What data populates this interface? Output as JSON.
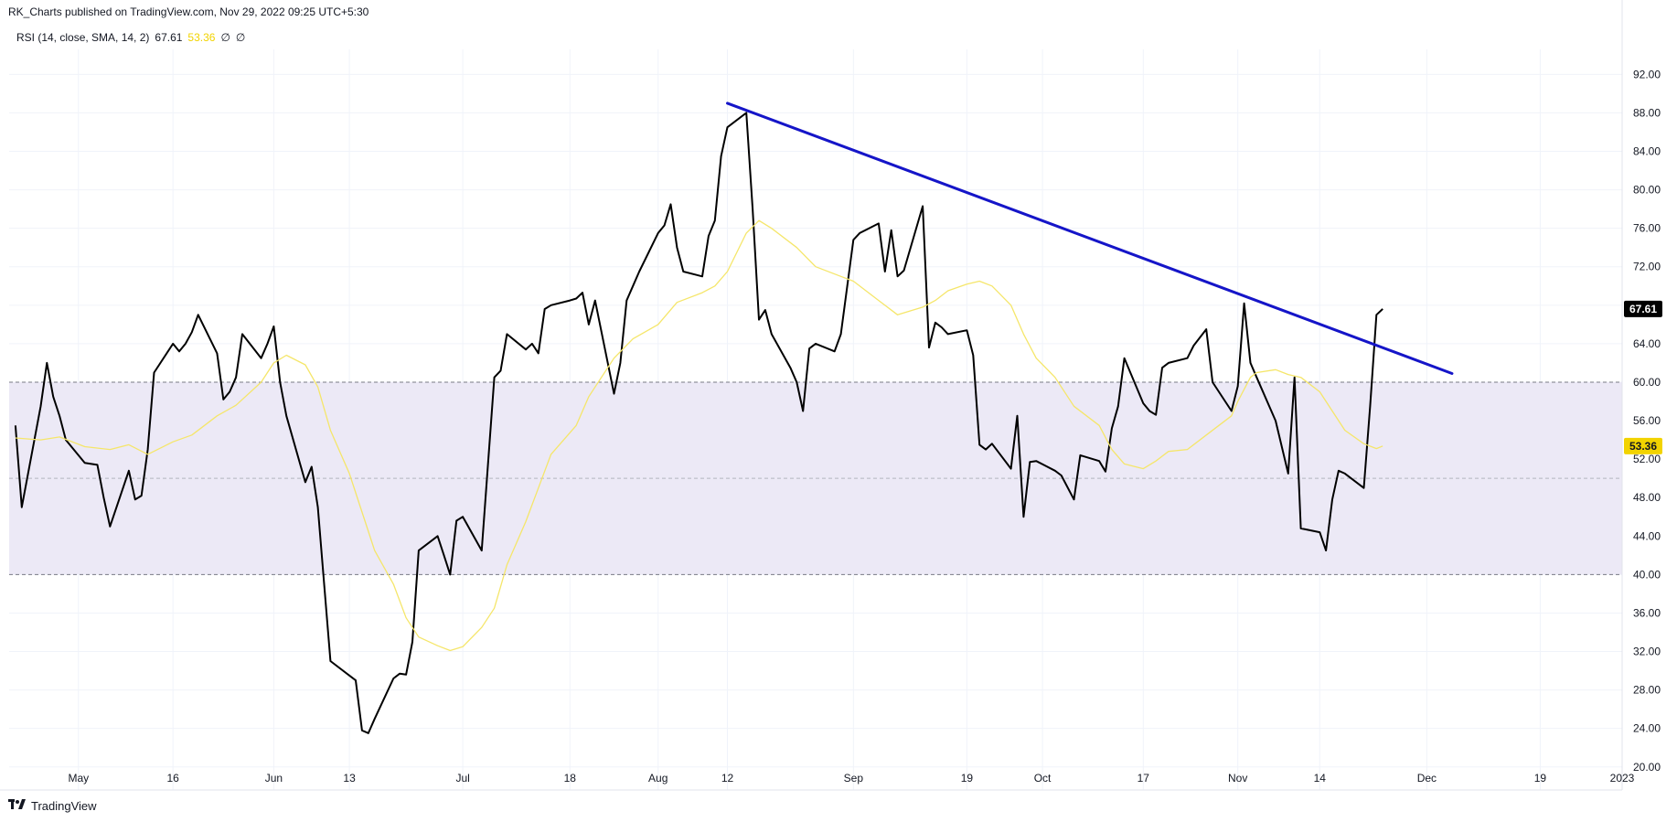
{
  "header": {
    "published": "RK_Charts published on TradingView.com, Nov 29, 2022 09:25 UTC+5:30"
  },
  "legend": {
    "indicator": "RSI (14, close, SMA, 14, 2)",
    "rsi_value": "67.61",
    "ma_value": "53.36",
    "extra1": "∅",
    "extra2": "∅"
  },
  "footer": {
    "brand": "TradingView"
  },
  "colors": {
    "rsi_line": "#000000",
    "ma_line": "#f5e66a",
    "trendline": "#1515c8",
    "band_fill": "#ece9f6",
    "grid": "#f0f3fa",
    "ma_badge": "#f2d300",
    "rsi_badge": "#000000"
  },
  "chart_data": {
    "type": "line",
    "ylim": [
      17.6,
      94.6
    ],
    "y_ticks": [
      "92.00",
      "88.00",
      "84.00",
      "80.00",
      "76.00",
      "72.00",
      "68.00",
      "64.00",
      "60.00",
      "56.00",
      "52.00",
      "48.00",
      "44.00",
      "40.00",
      "36.00",
      "32.00",
      "28.00",
      "24.00",
      "20.00"
    ],
    "y_tick_values": [
      92,
      88,
      84,
      80,
      76,
      72,
      68,
      64,
      60,
      56,
      52,
      48,
      44,
      40,
      36,
      32,
      28,
      24,
      20
    ],
    "x_labels": [
      "May",
      "16",
      "Jun",
      "13",
      "Jul",
      "18",
      "Aug",
      "12",
      "Sep",
      "19",
      "Oct",
      "17",
      "Nov",
      "14",
      "Dec",
      "19",
      "2023"
    ],
    "x_label_dates": [
      "2022-05-01",
      "2022-05-16",
      "2022-06-01",
      "2022-06-13",
      "2022-07-01",
      "2022-07-18",
      "2022-08-01",
      "2022-08-12",
      "2022-09-01",
      "2022-09-19",
      "2022-10-01",
      "2022-10-17",
      "2022-11-01",
      "2022-11-14",
      "2022-12-01",
      "2022-12-19",
      "2023-01-01"
    ],
    "bands": [
      {
        "from": 40,
        "to": 60,
        "upper_line": 60,
        "middle_line": 50,
        "lower_line": 40
      }
    ],
    "series": [
      {
        "type": "rsi",
        "points": [
          [
            "2022-04-21",
            55.5
          ],
          [
            "2022-04-22",
            47.0
          ],
          [
            "2022-04-25",
            57.5
          ],
          [
            "2022-04-26",
            62.0
          ],
          [
            "2022-04-27",
            58.5
          ],
          [
            "2022-04-28",
            56.5
          ],
          [
            "2022-04-29",
            54.0
          ],
          [
            "2022-05-02",
            51.6
          ],
          [
            "2022-05-04",
            51.4
          ],
          [
            "2022-05-05",
            48.0
          ],
          [
            "2022-05-06",
            45.0
          ],
          [
            "2022-05-09",
            50.8
          ],
          [
            "2022-05-10",
            47.8
          ],
          [
            "2022-05-11",
            48.2
          ],
          [
            "2022-05-12",
            53.0
          ],
          [
            "2022-05-13",
            61.0
          ],
          [
            "2022-05-16",
            64.0
          ],
          [
            "2022-05-17",
            63.2
          ],
          [
            "2022-05-18",
            64.0
          ],
          [
            "2022-05-19",
            65.2
          ],
          [
            "2022-05-20",
            67.0
          ],
          [
            "2022-05-23",
            63.0
          ],
          [
            "2022-05-24",
            58.2
          ],
          [
            "2022-05-25",
            59.0
          ],
          [
            "2022-05-26",
            60.5
          ],
          [
            "2022-05-27",
            65.0
          ],
          [
            "2022-05-30",
            62.5
          ],
          [
            "2022-05-31",
            64.0
          ],
          [
            "2022-06-01",
            65.8
          ],
          [
            "2022-06-02",
            60.0
          ],
          [
            "2022-06-03",
            56.5
          ],
          [
            "2022-06-06",
            49.6
          ],
          [
            "2022-06-07",
            51.2
          ],
          [
            "2022-06-08",
            47.0
          ],
          [
            "2022-06-09",
            39.0
          ],
          [
            "2022-06-10",
            31.0
          ],
          [
            "2022-06-13",
            29.5
          ],
          [
            "2022-06-14",
            29.0
          ],
          [
            "2022-06-15",
            23.8
          ],
          [
            "2022-06-16",
            23.5
          ],
          [
            "2022-06-17",
            25.0
          ],
          [
            "2022-06-20",
            29.2
          ],
          [
            "2022-06-21",
            29.7
          ],
          [
            "2022-06-22",
            29.6
          ],
          [
            "2022-06-23",
            33.0
          ],
          [
            "2022-06-24",
            42.5
          ],
          [
            "2022-06-27",
            44.0
          ],
          [
            "2022-06-28",
            42.0
          ],
          [
            "2022-06-29",
            40.0
          ],
          [
            "2022-06-30",
            45.6
          ],
          [
            "2022-07-01",
            46.0
          ],
          [
            "2022-07-04",
            42.5
          ],
          [
            "2022-07-05",
            51.5
          ],
          [
            "2022-07-06",
            60.5
          ],
          [
            "2022-07-07",
            61.2
          ],
          [
            "2022-07-08",
            65.0
          ],
          [
            "2022-07-11",
            63.4
          ],
          [
            "2022-07-12",
            64.0
          ],
          [
            "2022-07-13",
            63.0
          ],
          [
            "2022-07-14",
            67.6
          ],
          [
            "2022-07-15",
            68.0
          ],
          [
            "2022-07-18",
            68.5
          ],
          [
            "2022-07-19",
            68.7
          ],
          [
            "2022-07-20",
            69.3
          ],
          [
            "2022-07-21",
            66.0
          ],
          [
            "2022-07-22",
            68.5
          ],
          [
            "2022-07-25",
            58.8
          ],
          [
            "2022-07-26",
            62.0
          ],
          [
            "2022-07-27",
            68.5
          ],
          [
            "2022-07-28",
            70.0
          ],
          [
            "2022-07-29",
            71.5
          ],
          [
            "2022-08-01",
            75.5
          ],
          [
            "2022-08-02",
            76.3
          ],
          [
            "2022-08-03",
            78.5
          ],
          [
            "2022-08-04",
            74.0
          ],
          [
            "2022-08-05",
            71.5
          ],
          [
            "2022-08-08",
            71.0
          ],
          [
            "2022-08-09",
            75.2
          ],
          [
            "2022-08-10",
            76.8
          ],
          [
            "2022-08-11",
            83.5
          ],
          [
            "2022-08-12",
            86.5
          ],
          [
            "2022-08-15",
            88.0
          ],
          [
            "2022-08-16",
            78.0
          ],
          [
            "2022-08-17",
            66.5
          ],
          [
            "2022-08-18",
            67.5
          ],
          [
            "2022-08-19",
            65.0
          ],
          [
            "2022-08-22",
            61.5
          ],
          [
            "2022-08-23",
            60.0
          ],
          [
            "2022-08-24",
            57.0
          ],
          [
            "2022-08-25",
            63.5
          ],
          [
            "2022-08-26",
            64.0
          ],
          [
            "2022-08-29",
            63.2
          ],
          [
            "2022-08-30",
            65.0
          ],
          [
            "2022-09-01",
            74.8
          ],
          [
            "2022-09-02",
            75.5
          ],
          [
            "2022-09-05",
            76.5
          ],
          [
            "2022-09-06",
            71.5
          ],
          [
            "2022-09-07",
            75.8
          ],
          [
            "2022-09-08",
            71.0
          ],
          [
            "2022-09-09",
            71.6
          ],
          [
            "2022-09-12",
            78.3
          ],
          [
            "2022-09-13",
            63.6
          ],
          [
            "2022-09-14",
            66.2
          ],
          [
            "2022-09-15",
            65.7
          ],
          [
            "2022-09-16",
            65.0
          ],
          [
            "2022-09-19",
            65.4
          ],
          [
            "2022-09-20",
            62.8
          ],
          [
            "2022-09-21",
            53.5
          ],
          [
            "2022-09-22",
            53.0
          ],
          [
            "2022-09-23",
            53.6
          ],
          [
            "2022-09-26",
            51.0
          ],
          [
            "2022-09-27",
            56.5
          ],
          [
            "2022-09-28",
            46.0
          ],
          [
            "2022-09-29",
            51.7
          ],
          [
            "2022-09-30",
            51.8
          ],
          [
            "2022-10-03",
            50.8
          ],
          [
            "2022-10-04",
            50.3
          ],
          [
            "2022-10-06",
            47.8
          ],
          [
            "2022-10-07",
            52.4
          ],
          [
            "2022-10-10",
            51.8
          ],
          [
            "2022-10-11",
            50.7
          ],
          [
            "2022-10-12",
            55.2
          ],
          [
            "2022-10-13",
            57.5
          ],
          [
            "2022-10-14",
            62.5
          ],
          [
            "2022-10-17",
            57.8
          ],
          [
            "2022-10-18",
            57.0
          ],
          [
            "2022-10-19",
            56.6
          ],
          [
            "2022-10-20",
            61.5
          ],
          [
            "2022-10-21",
            62.0
          ],
          [
            "2022-10-24",
            62.5
          ],
          [
            "2022-10-25",
            63.8
          ],
          [
            "2022-10-27",
            65.5
          ],
          [
            "2022-10-28",
            60.0
          ],
          [
            "2022-10-31",
            57.0
          ],
          [
            "2022-11-01",
            59.6
          ],
          [
            "2022-11-02",
            68.2
          ],
          [
            "2022-11-03",
            62.0
          ],
          [
            "2022-11-04",
            60.5
          ],
          [
            "2022-11-07",
            56.0
          ],
          [
            "2022-11-09",
            50.5
          ],
          [
            "2022-11-10",
            60.5
          ],
          [
            "2022-11-11",
            44.8
          ],
          [
            "2022-11-14",
            44.4
          ],
          [
            "2022-11-15",
            42.5
          ],
          [
            "2022-11-16",
            47.8
          ],
          [
            "2022-11-17",
            50.8
          ],
          [
            "2022-11-18",
            50.5
          ],
          [
            "2022-11-21",
            49.0
          ],
          [
            "2022-11-22",
            57.5
          ],
          [
            "2022-11-23",
            67.0
          ],
          [
            "2022-11-24",
            67.61
          ]
        ]
      },
      {
        "type": "ma",
        "points": [
          [
            "2022-04-21",
            54.2
          ],
          [
            "2022-04-25",
            54.0
          ],
          [
            "2022-04-28",
            54.3
          ],
          [
            "2022-05-02",
            53.3
          ],
          [
            "2022-05-06",
            53.0
          ],
          [
            "2022-05-09",
            53.5
          ],
          [
            "2022-05-12",
            52.5
          ],
          [
            "2022-05-16",
            53.8
          ],
          [
            "2022-05-19",
            54.5
          ],
          [
            "2022-05-23",
            56.5
          ],
          [
            "2022-05-26",
            57.6
          ],
          [
            "2022-05-30",
            60.0
          ],
          [
            "2022-06-01",
            62.0
          ],
          [
            "2022-06-03",
            62.8
          ],
          [
            "2022-06-06",
            61.8
          ],
          [
            "2022-06-08",
            59.5
          ],
          [
            "2022-06-10",
            55.0
          ],
          [
            "2022-06-13",
            50.5
          ],
          [
            "2022-06-15",
            46.5
          ],
          [
            "2022-06-17",
            42.5
          ],
          [
            "2022-06-20",
            39.0
          ],
          [
            "2022-06-22",
            35.5
          ],
          [
            "2022-06-24",
            33.5
          ],
          [
            "2022-06-27",
            32.6
          ],
          [
            "2022-06-29",
            32.1
          ],
          [
            "2022-07-01",
            32.5
          ],
          [
            "2022-07-04",
            34.5
          ],
          [
            "2022-07-06",
            36.5
          ],
          [
            "2022-07-08",
            41.0
          ],
          [
            "2022-07-11",
            45.5
          ],
          [
            "2022-07-13",
            49.0
          ],
          [
            "2022-07-15",
            52.5
          ],
          [
            "2022-07-19",
            55.5
          ],
          [
            "2022-07-21",
            58.5
          ],
          [
            "2022-07-25",
            62.5
          ],
          [
            "2022-07-28",
            64.5
          ],
          [
            "2022-08-01",
            66.0
          ],
          [
            "2022-08-04",
            68.3
          ],
          [
            "2022-08-08",
            69.3
          ],
          [
            "2022-08-10",
            70.0
          ],
          [
            "2022-08-12",
            71.5
          ],
          [
            "2022-08-15",
            75.5
          ],
          [
            "2022-08-17",
            76.8
          ],
          [
            "2022-08-19",
            76.0
          ],
          [
            "2022-08-23",
            74.0
          ],
          [
            "2022-08-26",
            72.0
          ],
          [
            "2022-08-30",
            71.0
          ],
          [
            "2022-09-01",
            70.5
          ],
          [
            "2022-09-05",
            68.5
          ],
          [
            "2022-09-08",
            67.0
          ],
          [
            "2022-09-12",
            67.8
          ],
          [
            "2022-09-14",
            68.5
          ],
          [
            "2022-09-16",
            69.5
          ],
          [
            "2022-09-19",
            70.2
          ],
          [
            "2022-09-21",
            70.5
          ],
          [
            "2022-09-23",
            70.0
          ],
          [
            "2022-09-26",
            68.0
          ],
          [
            "2022-09-28",
            65.0
          ],
          [
            "2022-09-30",
            62.5
          ],
          [
            "2022-10-03",
            60.5
          ],
          [
            "2022-10-06",
            57.5
          ],
          [
            "2022-10-10",
            55.5
          ],
          [
            "2022-10-12",
            53.0
          ],
          [
            "2022-10-14",
            51.5
          ],
          [
            "2022-10-17",
            51.0
          ],
          [
            "2022-10-19",
            51.8
          ],
          [
            "2022-10-21",
            52.8
          ],
          [
            "2022-10-24",
            53.0
          ],
          [
            "2022-10-27",
            54.5
          ],
          [
            "2022-10-31",
            56.5
          ],
          [
            "2022-11-01",
            58.0
          ],
          [
            "2022-11-03",
            60.5
          ],
          [
            "2022-11-04",
            61.0
          ],
          [
            "2022-11-07",
            61.3
          ],
          [
            "2022-11-09",
            60.8
          ],
          [
            "2022-11-11",
            60.5
          ],
          [
            "2022-11-14",
            59.0
          ],
          [
            "2022-11-16",
            57.0
          ],
          [
            "2022-11-18",
            55.0
          ],
          [
            "2022-11-21",
            53.6
          ],
          [
            "2022-11-23",
            53.1
          ],
          [
            "2022-11-24",
            53.36
          ]
        ]
      }
    ],
    "trendline": {
      "from": [
        "2022-08-12",
        89.0
      ],
      "to": [
        "2022-12-05",
        60.9
      ]
    },
    "last_values": {
      "rsi": "67.61",
      "ma": "53.36"
    }
  }
}
